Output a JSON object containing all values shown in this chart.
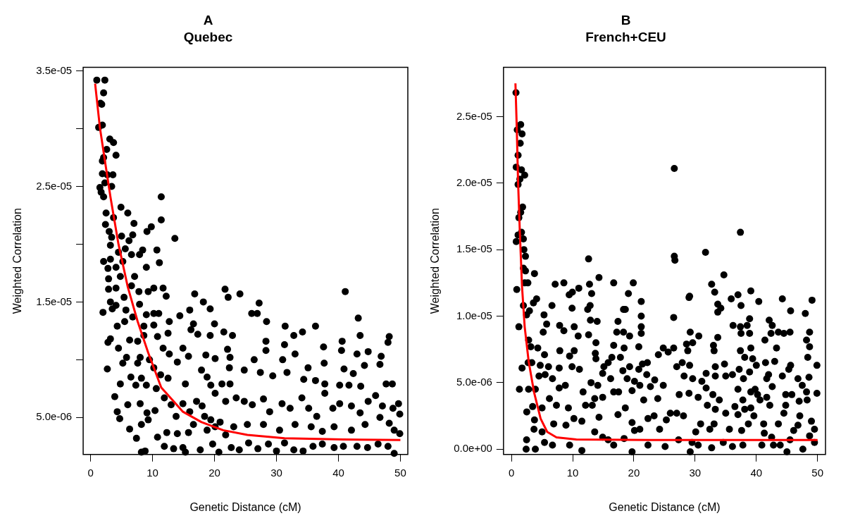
{
  "chart_data": [
    {
      "type": "scatter",
      "title": "A",
      "subtitle": "Quebec",
      "xlabel": "Genetic Distance (cM)",
      "ylabel": "Weighted Correlation",
      "xlim": [
        -1.2,
        51.2
      ],
      "xticks": [
        0,
        10,
        20,
        30,
        40,
        50
      ],
      "ylim": [
        1.8e-06,
        3.53e-05
      ],
      "yticks": [
        {
          "value": 5e-06,
          "label": "5.0e-06"
        },
        {
          "value": 1e-05,
          "label": null
        },
        {
          "value": 1.5e-05,
          "label": "1.5e-05"
        },
        {
          "value": 2e-05,
          "label": null
        },
        {
          "value": 2.5e-05,
          "label": "2.5e-05"
        },
        {
          "value": 3e-05,
          "label": null
        },
        {
          "value": 3.5e-05,
          "label": "3.5e-05"
        }
      ],
      "series": [
        {
          "type": "scatter",
          "marker": "circle",
          "color": "#000000",
          "x": [
            1.0,
            2.3,
            2.1,
            1.6,
            1.8,
            1.3,
            1.9,
            3.1,
            3.7,
            2.6,
            4.1,
            2.1,
            1.9,
            1.9,
            3.6,
            2.7,
            2.3,
            1.5,
            3.4,
            1.7,
            2.1,
            11.4,
            4.9,
            6.0,
            11.4,
            2.5,
            7.0,
            3.7,
            9.1,
            9.8,
            2.4,
            3.0,
            13.6,
            3.4,
            5.0,
            6.8,
            3.2,
            6.2,
            5.6,
            6.6,
            8.4,
            7.9,
            10.7,
            2.1,
            4.5,
            3.2,
            5.2,
            9.0,
            11.1,
            2.8,
            4.1,
            2.9,
            4.8,
            7.1,
            2.9,
            4.1,
            6.6,
            7.8,
            9.3,
            10.2,
            11.7,
            12.2,
            5.4,
            4.1,
            3.2,
            2.0,
            3.5,
            7.9,
            5.7,
            9.0,
            10.2,
            11.0,
            4.3,
            5.5,
            6.8,
            8.6,
            10.2,
            12.7,
            14.4,
            16.0,
            16.8,
            18.2,
            19.3,
            21.7,
            22.2,
            24.1,
            27.2,
            26.0,
            26.9,
            28.4,
            41.1,
            43.2,
            43.5,
            48.2,
            48.0,
            31.4,
            34.2,
            36.3,
            32.8,
            20.0,
            16.6,
            17.3,
            19.3,
            21.5,
            22.9,
            16.2,
            12.5,
            2.8,
            3.2,
            4.5,
            6.3,
            7.6,
            8.6,
            10.8,
            11.7,
            5.8,
            8.0,
            9.5,
            12.7,
            14.9,
            15.8,
            18.6,
            20.1,
            22.1,
            22.5,
            28.3,
            28.3,
            31.3,
            33.0,
            37.6,
            40.6,
            40.5,
            43.0,
            44.8,
            46.9,
            46.7,
            2.7,
            5.2,
            7.6,
            10.2,
            14.0,
            22.4,
            26.4,
            31.0,
            35.1,
            37.7,
            40.9,
            44.2,
            42.4,
            4.8,
            6.5,
            7.3,
            8.2,
            9.0,
            10.6,
            11.3,
            12.5,
            15.3,
            17.9,
            18.8,
            19.4,
            21.2,
            22.5,
            24.8,
            27.4,
            29.4,
            31.7,
            34.4,
            36.3,
            37.8,
            40.2,
            41.7,
            43.6,
            47.7,
            48.7,
            3.9,
            4.3,
            4.7,
            6.3,
            7.4,
            6.0,
            8.0,
            9.1,
            10.4,
            8.2,
            9.3,
            10.8,
            11.9,
            13.0,
            13.8,
            14.9,
            16.0,
            17.1,
            18.0,
            18.4,
            19.4,
            20.9,
            20.1,
            21.8,
            23.5,
            24.8,
            26.1,
            27.9,
            28.9,
            30.9,
            32.2,
            34.1,
            35.2,
            36.5,
            37.8,
            39.1,
            40.2,
            42.1,
            43.5,
            44.8,
            46.0,
            47.1,
            48.8,
            49.7,
            49.9,
            48.2,
            49.0,
            49.9,
            46.7,
            44.3,
            42.1,
            39.3,
            37.4,
            35.6,
            33.0,
            30.5,
            27.9,
            25.3,
            23.1,
            21.8,
            20.1,
            18.8,
            16.6,
            15.8,
            14.0,
            12.3,
            11.9,
            13.4,
            14.9,
            15.3,
            17.7,
            19.7,
            20.7,
            22.7,
            24.0,
            25.5,
            27.0,
            28.7,
            30.0,
            31.3,
            32.8,
            34.3,
            35.9,
            37.4,
            39.3,
            40.8,
            43.0,
            44.7,
            46.4,
            48.0,
            49.0,
            8.2,
            8.8
          ],
          "values": [
            3.42e-05,
            3.42e-05,
            3.31e-05,
            3.22e-05,
            3.21e-05,
            3.01e-05,
            3.03e-05,
            2.91e-05,
            2.88e-05,
            2.82e-05,
            2.77e-05,
            2.75e-05,
            2.72e-05,
            2.61e-05,
            2.6e-05,
            2.6e-05,
            2.53e-05,
            2.49e-05,
            2.5e-05,
            2.45e-05,
            2.41e-05,
            2.41e-05,
            2.32e-05,
            2.27e-05,
            2.21e-05,
            2.27e-05,
            2.18e-05,
            2.23e-05,
            2.11e-05,
            2.15e-05,
            2.17e-05,
            2.11e-05,
            2.05e-05,
            2.06e-05,
            2.07e-05,
            2.08e-05,
            1.99e-05,
            2.03e-05,
            1.96e-05,
            1.91e-05,
            1.95e-05,
            1.91e-05,
            1.95e-05,
            1.85e-05,
            1.93e-05,
            1.87e-05,
            1.85e-05,
            1.8e-05,
            1.84e-05,
            1.79e-05,
            1.8e-05,
            1.7e-05,
            1.72e-05,
            1.72e-05,
            1.61e-05,
            1.62e-05,
            1.64e-05,
            1.59e-05,
            1.59e-05,
            1.62e-05,
            1.62e-05,
            1.55e-05,
            1.54e-05,
            1.47e-05,
            1.5e-05,
            1.41e-05,
            1.44e-05,
            1.48e-05,
            1.43e-05,
            1.39e-05,
            1.4e-05,
            1.4e-05,
            1.29e-05,
            1.33e-05,
            1.37e-05,
            1.29e-05,
            1.3e-05,
            1.33e-05,
            1.38e-05,
            1.43e-05,
            1.57e-05,
            1.5e-05,
            1.44e-05,
            1.61e-05,
            1.54e-05,
            1.57e-05,
            1.49e-05,
            1.4e-05,
            1.4e-05,
            1.33e-05,
            1.59e-05,
            1.36e-05,
            1.21e-05,
            1.2e-05,
            1.15e-05,
            1.29e-05,
            1.24e-05,
            1.29e-05,
            1.21e-05,
            1.31e-05,
            1.31e-05,
            1.22e-05,
            1.21e-05,
            1.24e-05,
            1.21e-05,
            1.26e-05,
            1.23e-05,
            1.15e-05,
            1.18e-05,
            1.1e-05,
            1.17e-05,
            1.16e-05,
            1.21e-05,
            1.2e-05,
            1.1e-05,
            1.02e-05,
            1.02e-05,
            1e-05,
            1.05e-05,
            1.1e-05,
            1.03e-05,
            1.04e-05,
            1.01e-05,
            1.09e-05,
            1.02e-05,
            1.16e-05,
            1.08e-05,
            1.13e-05,
            1.05e-05,
            1.11e-05,
            1.16e-05,
            1.08e-05,
            1.05e-05,
            1.07e-05,
            1.03e-05,
            9.6e-06,
            9.2e-06,
            9.7e-06,
            9.7e-06,
            9.3e-06,
            9.8e-06,
            9.3e-06,
            1e-05,
            1e-05,
            9.3e-06,
            9.7e-06,
            9.2e-06,
            9.5e-06,
            8.8e-06,
            7.9e-06,
            8.5e-06,
            7.8e-06,
            8.4e-06,
            7.8e-06,
            7.5e-06,
            8.7e-06,
            8.4e-06,
            7.9e-06,
            9.1e-06,
            8.5e-06,
            7.8e-06,
            7.9e-06,
            7.9e-06,
            9.1e-06,
            8.9e-06,
            8.6e-06,
            8.9e-06,
            8.3e-06,
            8.2e-06,
            7.9e-06,
            7.8e-06,
            7.8e-06,
            7.7e-06,
            7.9e-06,
            7.9e-06,
            6.8e-06,
            5.5e-06,
            4.9e-06,
            4e-06,
            3.2e-06,
            6.1e-06,
            6.2e-06,
            5.4e-06,
            5.6e-06,
            4.4e-06,
            4.8e-06,
            3.3e-06,
            6.7e-06,
            6.1e-06,
            5.1e-06,
            6.2e-06,
            5.5e-06,
            6.4e-06,
            6e-06,
            5.1e-06,
            4.8e-06,
            4.6e-06,
            7.1e-06,
            6.4e-06,
            6.7e-06,
            6.4e-06,
            6.1e-06,
            6.6e-06,
            5.5e-06,
            6.2e-06,
            5.8e-06,
            6.7e-06,
            5.8e-06,
            5.1e-06,
            7.1e-06,
            5.8e-06,
            6.2e-06,
            6e-06,
            5.4e-06,
            6.4e-06,
            6.9e-06,
            6e-06,
            5.8e-06,
            6.2e-06,
            5.3e-06,
            4.5e-06,
            3.9e-06,
            3.6e-06,
            5e-06,
            4.4e-06,
            3.9e-06,
            4.2e-06,
            3.8e-06,
            4.2e-06,
            4.4e-06,
            3.9e-06,
            4.4e-06,
            4.4e-06,
            4.2e-06,
            3.5e-06,
            4.2e-06,
            3.9e-06,
            4.4e-06,
            3.7e-06,
            3.6e-06,
            3.7e-06,
            2.5e-06,
            2.3e-06,
            2.4e-06,
            2e-06,
            2.2e-06,
            2.7e-06,
            2e-06,
            2.4e-06,
            2.2e-06,
            2.8e-06,
            2.3e-06,
            2.7e-06,
            2.1e-06,
            2.8e-06,
            2.2e-06,
            2.1e-06,
            2.5e-06,
            2.7e-06,
            2.4e-06,
            2.5e-06,
            2.5e-06,
            2.4e-06,
            2.7e-06,
            2.5e-06,
            1.9e-06,
            2e-06,
            2.1e-06
          ]
        },
        {
          "type": "line",
          "color": "#ff0000",
          "x": [
            0.73,
            1.5,
            2.4,
            3.2,
            4.5,
            6.0,
            7.6,
            9.3,
            11.4,
            14.9,
            17.9,
            21.4,
            25.3,
            31.3,
            40.8,
            50
          ],
          "values": [
            3.39e-05,
            3.01e-05,
            2.69e-05,
            2.41e-05,
            2e-05,
            1.63e-05,
            1.33e-05,
            1.06e-05,
            7.6e-06,
            5.5e-06,
            4.6e-06,
            3.9e-06,
            3.5e-06,
            3.2e-06,
            3.1e-06,
            3.05e-06
          ]
        }
      ]
    },
    {
      "type": "scatter",
      "title": "B",
      "subtitle": "French+CEU",
      "xlabel": "Genetic Distance (cM)",
      "ylabel": "Weighted Correlation",
      "xlim": [
        -1.3,
        51.3
      ],
      "xticks": [
        0,
        10,
        20,
        30,
        40,
        50
      ],
      "ylim": [
        -4e-07,
        2.87e-05
      ],
      "yticks": [
        {
          "value": 0,
          "label": "0.0e+00"
        },
        {
          "value": 5e-06,
          "label": "5.0e-06"
        },
        {
          "value": 1e-05,
          "label": "1.0e-05"
        },
        {
          "value": 1.5e-05,
          "label": "1.5e-05"
        },
        {
          "value": 2e-05,
          "label": "2.0e-05"
        },
        {
          "value": 2.5e-05,
          "label": "2.5e-05"
        }
      ],
      "series": [
        {
          "type": "scatter",
          "marker": "circle",
          "color": "#000000",
          "x": [
            0.74,
            0.95,
            1.51,
            1.73,
            1.43,
            1.08,
            0.78,
            1.64,
            2.16,
            1.38,
            1.08,
            1.82,
            1.51,
            1.21,
            1.08,
            0.78,
            1.64,
            1.95,
            2.03,
            2.29,
            1.95,
            2.29,
            3.76,
            0.87,
            2.16,
            2.68,
            1.95,
            2.47,
            2.94,
            1.21,
            3.59,
            4.11,
            5.32,
            5.75,
            5.19,
            6.62,
            7.14,
            8.56,
            7.87,
            8.56,
            9.43,
            9.95,
            11.0,
            9.9,
            10.25,
            10.9,
            10.25,
            9.5,
            7.9,
            7.8,
            9.9,
            11.1,
            2.81,
            3.16,
            4.3,
            5.4,
            1.73,
            2.72,
            3.33,
            4.7,
            6.05,
            1.3,
            2.8,
            3.9,
            4.5,
            5.5,
            6.7,
            7.8,
            8.8,
            2.5,
            3.46,
            5.0,
            6.2,
            7.35,
            9.3,
            3.76,
            3.68,
            5.0,
            6.9,
            8.9,
            10.2,
            11.5,
            2.47,
            2.4,
            3.9,
            5.4,
            6.7,
            9.5,
            11.5,
            12.6,
            12.75,
            13.1,
            14.3,
            12.45,
            12.85,
            12.9,
            14.0,
            12.6,
            13.8,
            13.7,
            13.8,
            13.0,
            14.1,
            13.6,
            14.9,
            11.7,
            12.1,
            13.2,
            14.3,
            13.6,
            14.9,
            15.8,
            16.7,
            17.4,
            17.2,
            16.7,
            18.3,
            18.6,
            19.1,
            19.3,
            18.3,
            18.4,
            17.8,
            16.4,
            15.8,
            15.1,
            14.9,
            16.2,
            16.7,
            17.5,
            18.2,
            19.3,
            18.9,
            19.9,
            21.2,
            21.2,
            21.2,
            21.2,
            20.8,
            21.4,
            22.2,
            20.8,
            22.1,
            20.1,
            20.97,
            22.7,
            19.7,
            21.6,
            18.6,
            17.4,
            19.7,
            20.97,
            22.3,
            20.1,
            18.4,
            16.7,
            22.3,
            19.7,
            23.4,
            24.8,
            23.9,
            24.0,
            24.8,
            25.6,
            23.3,
            24.2,
            25.3,
            25.1,
            25.95,
            26.6,
            26.6,
            26.7,
            26.5,
            26.5,
            27.0,
            27.4,
            27.0,
            28.1,
            27.9,
            28.2,
            27.3,
            28.8,
            28.6,
            29.0,
            29.1,
            29.2,
            29.6,
            30.6,
            29.1,
            29.0,
            29.6,
            29.5,
            30.1,
            30.5,
            31.1,
            31.8,
            31.8,
            30.9,
            31.7,
            32.0,
            32.4,
            32.7,
            33.2,
            33.7,
            33.7,
            34.2,
            33.7,
            33.0,
            33.1,
            33.3,
            33.3,
            32.9,
            33.3,
            33.1,
            33.95,
            34.7,
            34.8,
            35.0,
            35.0,
            35.6,
            34.6,
            35.9,
            36.2,
            37.0,
            37.4,
            37.5,
            37.4,
            37.5,
            37.4,
            36.1,
            37.2,
            37.0,
            36.5,
            37.0,
            38.1,
            37.9,
            37.8,
            38.1,
            37.6,
            37.8,
            38.5,
            38.9,
            39.1,
            38.9,
            39.1,
            39.4,
            40.0,
            38.9,
            39.8,
            39.1,
            39.6,
            38.7,
            39.1,
            40.4,
            40.2,
            40.6,
            41.4,
            41.5,
            41.7,
            41.7,
            41.2,
            41.3,
            42.1,
            42.6,
            42.4,
            42.0,
            42.6,
            42.2,
            42.5,
            42.8,
            43.3,
            43.0,
            43.6,
            44.25,
            44.5,
            44.25,
            44.8,
            44.5,
            43.6,
            43.9,
            44.8,
            45.8,
            45.3,
            45.6,
            45.6,
            45.5,
            45.5,
            46.1,
            46.8,
            47.5,
            47.0,
            47.1,
            46.8,
            48.0,
            48.2,
            48.7,
            48.7,
            48.4,
            48.6,
            48.2,
            48.3,
            49.1,
            49.0,
            49.5,
            48.7,
            49.9,
            49.9,
            49.5,
            47.6,
            45.0,
            40.9,
            36.1,
            32.7,
            30.5,
            29.2
          ],
          "values": [
            2.68e-05,
            2.4e-05,
            2.44e-05,
            2.37e-05,
            2.3e-05,
            2.21e-05,
            2.12e-05,
            2.1e-05,
            2.06e-05,
            2.03e-05,
            1.99e-05,
            1.82e-05,
            1.78e-05,
            1.74e-05,
            1.61e-05,
            1.56e-05,
            1.63e-05,
            1.58e-05,
            1.5e-05,
            1.45e-05,
            1.36e-05,
            1.34e-05,
            1.32e-05,
            1.2e-05,
            1.25e-05,
            1.25e-05,
            1.08e-05,
            1.01e-05,
            1.04e-05,
            9.2e-06,
            1.1e-05,
            1.13e-05,
            1.01e-05,
            9.4e-06,
            8.8e-06,
            1.08e-05,
            1.24e-05,
            1.25e-05,
            9.3e-06,
            8.9e-06,
            1.16e-05,
            1.18e-05,
            1.21e-05,
            1.06e-05,
            9.2e-06,
            8.5e-06,
            7.4e-06,
            7e-06,
            7.4e-06,
            6.1e-06,
            6.2e-06,
            6e-06,
            8.2e-06,
            7.7e-06,
            7.6e-06,
            7.1e-06,
            6.1e-06,
            6.5e-06,
            6.5e-06,
            6.3e-06,
            6.2e-06,
            4.5e-06,
            4.5e-06,
            4.5e-06,
            5.5e-06,
            5.6e-06,
            5.3e-06,
            4.6e-06,
            4.8e-06,
            2.8e-06,
            3.2e-06,
            3.1e-06,
            3.8e-06,
            3.3e-06,
            3.1e-06,
            2.2e-06,
            1.5e-06,
            1.3e-06,
            1.9e-06,
            1.8e-06,
            2.3e-06,
            2.1e-06,
            7e-07,
            0.0,
            0.0,
            5e-07,
            3e-07,
            3e-07,
            -1e-07,
            1.43e-05,
            1.24e-05,
            1.17e-05,
            1.29e-05,
            1.05e-05,
            1.08e-05,
            9.7e-06,
            9.6e-06,
            8.6e-06,
            8e-06,
            7.2e-06,
            6.8e-06,
            5e-06,
            4.8e-06,
            3.8e-06,
            3.9e-06,
            4.3e-06,
            3.3e-06,
            3.3e-06,
            2.4e-06,
            1.3e-06,
            9e-07,
            7e-07,
            1.25e-05,
            9.6e-06,
            8.8e-06,
            7.8e-06,
            1.05e-05,
            1.05e-05,
            1.17e-05,
            8.5e-06,
            8.8e-06,
            7.6e-06,
            6.9e-06,
            6.9e-06,
            6.5e-06,
            6.2e-06,
            5.7e-06,
            5.3e-06,
            4.3e-06,
            4.3e-06,
            5.9e-06,
            6.2e-06,
            5.3e-06,
            1.25e-05,
            1.11e-05,
            1e-05,
            9.2e-06,
            8.7e-06,
            7.7e-06,
            6.4e-06,
            6.5e-06,
            6e-06,
            5.6e-06,
            5.1e-06,
            4.8e-06,
            4.7e-06,
            4.4e-06,
            3.7e-06,
            3.1e-06,
            2.6e-06,
            2e-06,
            1.5e-06,
            2.3e-06,
            1.4e-06,
            8e-07,
            3e-07,
            3e-07,
            -2e-07,
            5.2e-06,
            4.8e-06,
            3.8e-06,
            7.1e-06,
            7.6e-06,
            7.3e-06,
            2.5e-06,
            1.5e-06,
            2.2e-06,
            2e-07,
            2.7e-06,
            2.11e-05,
            1.45e-05,
            1.42e-05,
            9.9e-06,
            7.6e-06,
            6.2e-06,
            4.1e-06,
            2.7e-06,
            2.5e-06,
            6.5e-06,
            5.5e-06,
            7e-07,
            7.4e-06,
            7.9e-06,
            1.14e-05,
            1.15e-05,
            8.8e-06,
            8e-06,
            8.5e-06,
            6.3e-06,
            4.2e-06,
            5.3e-06,
            5e-07,
            1.3e-06,
            3.9e-06,
            5.1e-06,
            5.7e-06,
            4.6e-06,
            1.9e-06,
            1.48e-05,
            3.3e-06,
            1.5e-06,
            1.24e-05,
            1.18e-05,
            1.09e-05,
            1.03e-05,
            1.06e-05,
            8.4e-06,
            7.8e-06,
            7.4e-06,
            6.2e-06,
            5.5e-06,
            4.1e-06,
            3e-06,
            1.9e-06,
            3.7e-06,
            1.31e-05,
            6.4e-06,
            5.5e-06,
            2.7e-06,
            1.5e-06,
            5e-07,
            1.13e-05,
            9.3e-06,
            1.16e-05,
            1.63e-05,
            1.08e-05,
            9.2e-06,
            8.7e-06,
            7.4e-06,
            5.6e-06,
            6e-06,
            4.5e-06,
            3.2e-06,
            2.6e-06,
            6.9e-06,
            5.3e-06,
            3.7e-06,
            3e-06,
            1.4e-06,
            3e-07,
            9.3e-06,
            9.8e-06,
            1.19e-05,
            8.7e-06,
            7.6e-06,
            6.8e-06,
            6.3e-06,
            5.8e-06,
            4.5e-06,
            4.3e-06,
            2.5e-06,
            1.9e-06,
            3.1e-06,
            1.11e-05,
            4.1e-06,
            3.7e-06,
            8.2e-06,
            6.5e-06,
            5.3e-06,
            3.9e-06,
            1.9e-06,
            1.2e-06,
            9.7e-06,
            9.3e-06,
            8.7e-06,
            5.6e-06,
            4.7e-06,
            3.3e-06,
            9e-07,
            3e-07,
            7.6e-06,
            6.6e-06,
            8.8e-06,
            1.13e-05,
            8.7e-06,
            5.5e-06,
            3.3e-06,
            2.7e-06,
            1.9e-06,
            3e-07,
            4.1e-06,
            4.1e-06,
            6e-06,
            6.3e-06,
            1.04e-05,
            8.8e-06,
            7e-07,
            1.4e-06,
            5.3e-06,
            4.8e-06,
            3.6e-06,
            2.5e-06,
            1.8e-06,
            1.02e-05,
            8.2e-06,
            8.8e-06,
            7.7e-06,
            6.9e-06,
            5.4e-06,
            4.3e-06,
            3.7e-06,
            1.12e-05,
            2.1e-06,
            1.5e-06,
            1e-06,
            6.3e-06,
            4.2e-06,
            5e-07,
            0.0,
            -2e-07,
            3e-07,
            2e-07,
            1e-07,
            3e-07,
            -2e-07
          ]
        },
        {
          "type": "line",
          "color": "#ff0000",
          "x": [
            0.65,
            0.87,
            1.08,
            1.38,
            1.73,
            2.16,
            2.81,
            3.68,
            4.76,
            5.84,
            7.35,
            10.6,
            22.7,
            50
          ],
          "values": [
            2.75e-05,
            2.41e-05,
            2.01e-05,
            1.62e-05,
            1.22e-05,
            9.2e-06,
            6.6e-06,
            4.3e-06,
            2.3e-06,
            1.3e-06,
            8.9e-07,
            7.3e-07,
            6.9e-07,
            6.9e-07
          ]
        }
      ]
    }
  ]
}
